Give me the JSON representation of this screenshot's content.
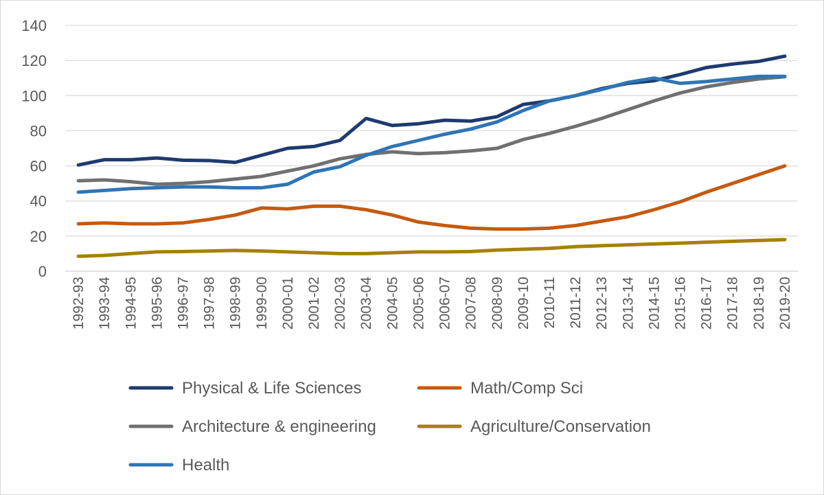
{
  "chart_data": {
    "type": "line",
    "categories": [
      "1992-93",
      "1993-94",
      "1994-95",
      "1995-96",
      "1996-97",
      "1997-98",
      "1998-99",
      "1999-00",
      "2000-01",
      "2001-02",
      "2002-03",
      "2003-04",
      "2004-05",
      "2005-06",
      "2006-07",
      "2007-08",
      "2008-09",
      "2009-10",
      "2010-11",
      "2011-12",
      "2012-13",
      "2013-14",
      "2014-15",
      "2015-16",
      "2016-17",
      "2017-18",
      "2018-19",
      "2019-20"
    ],
    "ylim": [
      0,
      140
    ],
    "yticks": [
      "0",
      "20",
      "40",
      "60",
      "80",
      "100",
      "120",
      "140"
    ],
    "grid": true,
    "legend_position": "bottom",
    "series": [
      {
        "name": "Physical & Life Sciences",
        "color": "#1f3a6e",
        "values": [
          60.5,
          63.5,
          63.5,
          64.5,
          63.2,
          63.0,
          62.0,
          66.0,
          70.0,
          71.0,
          74.5,
          87.0,
          83.0,
          84.0,
          86.0,
          85.5,
          88.0,
          95.0,
          97.0,
          100.0,
          104.0,
          107.0,
          108.5,
          112.0,
          116.0,
          118.0,
          119.5,
          122.5
        ]
      },
      {
        "name": "Math/Comp Sci",
        "color": "#c55a11",
        "values": [
          27.0,
          27.5,
          27.0,
          27.0,
          27.5,
          29.5,
          32.0,
          36.0,
          35.5,
          37.0,
          37.0,
          35.0,
          32.0,
          28.0,
          26.0,
          24.5,
          24.0,
          24.0,
          24.5,
          26.0,
          28.5,
          31.0,
          35.0,
          39.5,
          45.0,
          50.0,
          55.0,
          60.0
        ]
      },
      {
        "name": "Architecture & engineering",
        "color": "#707070",
        "values": [
          51.5,
          52.0,
          51.0,
          49.5,
          50.0,
          51.0,
          52.5,
          54.0,
          57.0,
          60.0,
          64.0,
          66.5,
          68.0,
          67.0,
          67.5,
          68.5,
          70.0,
          75.0,
          78.5,
          82.5,
          87.0,
          92.0,
          97.0,
          101.5,
          105.0,
          107.5,
          109.5,
          110.8
        ]
      },
      {
        "name": "Agriculture/Conservation",
        "color": "#a68100",
        "values": [
          8.5,
          9.0,
          10.0,
          11.0,
          11.2,
          11.5,
          11.8,
          11.5,
          11.0,
          10.5,
          10.0,
          10.0,
          10.5,
          11.0,
          11.0,
          11.2,
          12.0,
          12.5,
          13.0,
          14.0,
          14.5,
          15.0,
          15.5,
          16.0,
          16.5,
          17.0,
          17.5,
          18.0
        ]
      },
      {
        "name": "Health",
        "color": "#2e75b6",
        "values": [
          45.0,
          46.0,
          47.0,
          47.5,
          48.0,
          48.0,
          47.5,
          47.5,
          49.5,
          56.5,
          59.5,
          66.0,
          71.0,
          74.5,
          78.0,
          81.0,
          85.0,
          91.5,
          97.0,
          100.0,
          103.5,
          107.5,
          110.0,
          107.0,
          108.0,
          109.5,
          111.0,
          111.0
        ]
      }
    ]
  }
}
